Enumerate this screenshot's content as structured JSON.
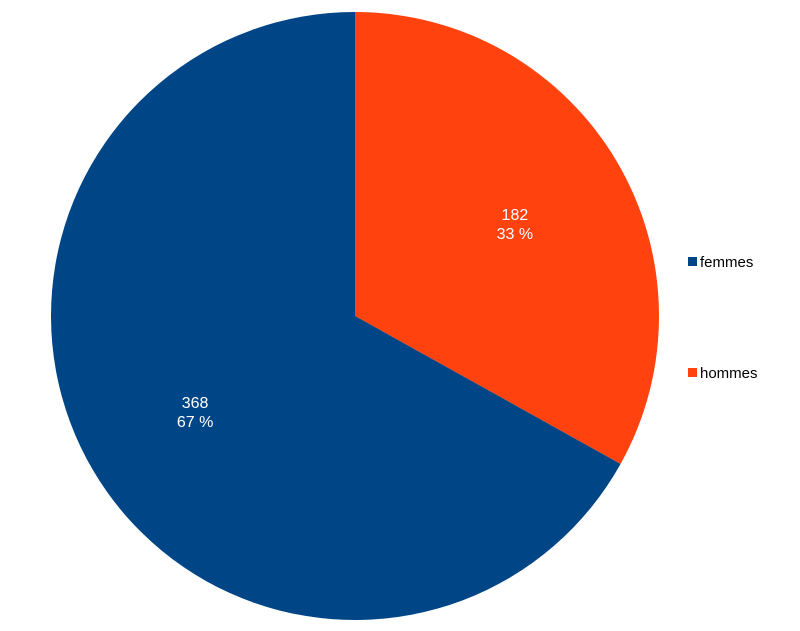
{
  "chart_data": {
    "type": "pie",
    "title": "",
    "slices": [
      {
        "name": "femmes",
        "value": 368,
        "percent_label": "67 %",
        "color": "#004586"
      },
      {
        "name": "hommes",
        "value": 182,
        "percent_label": "33 %",
        "color": "#ff420e"
      }
    ],
    "start": "12 o'clock",
    "direction": "clockwise, hommes first",
    "legend_position": "right"
  }
}
